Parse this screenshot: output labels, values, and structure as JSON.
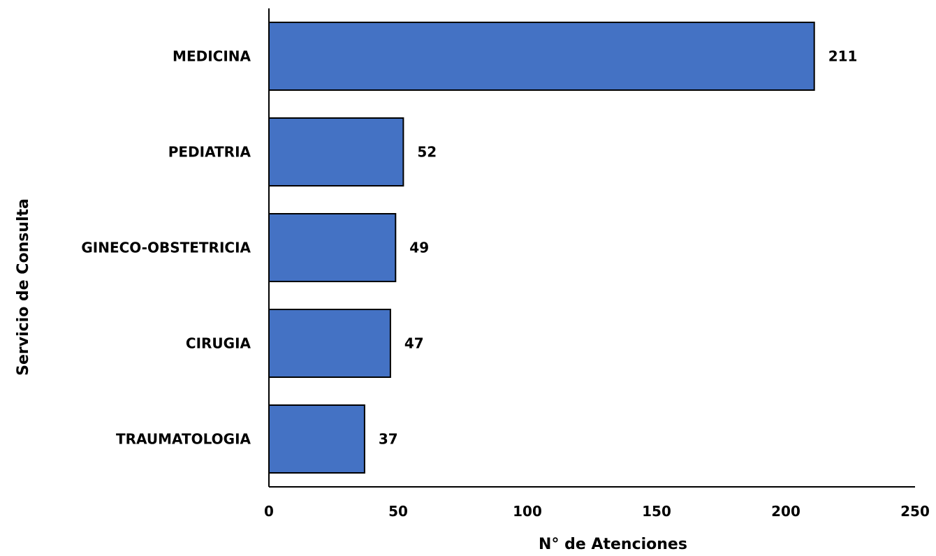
{
  "chart_data": {
    "type": "bar",
    "orientation": "horizontal",
    "categories": [
      "MEDICINA",
      "PEDIATRIA",
      "GINECO-OBSTETRICIA",
      "CIRUGIA",
      "TRAUMATOLOGIA"
    ],
    "values": [
      211,
      52,
      49,
      47,
      37
    ],
    "value_labels": [
      "211",
      "52",
      "49",
      "47",
      "37"
    ],
    "xlabel": "N° de Atenciones",
    "ylabel": "Servicio de Consulta",
    "xlim": [
      0,
      250
    ],
    "xticks": [
      "0",
      "50",
      "100",
      "150",
      "200",
      "250"
    ],
    "grid": false,
    "bar_color": "#4472C4",
    "bar_edge_color": "#000000"
  }
}
